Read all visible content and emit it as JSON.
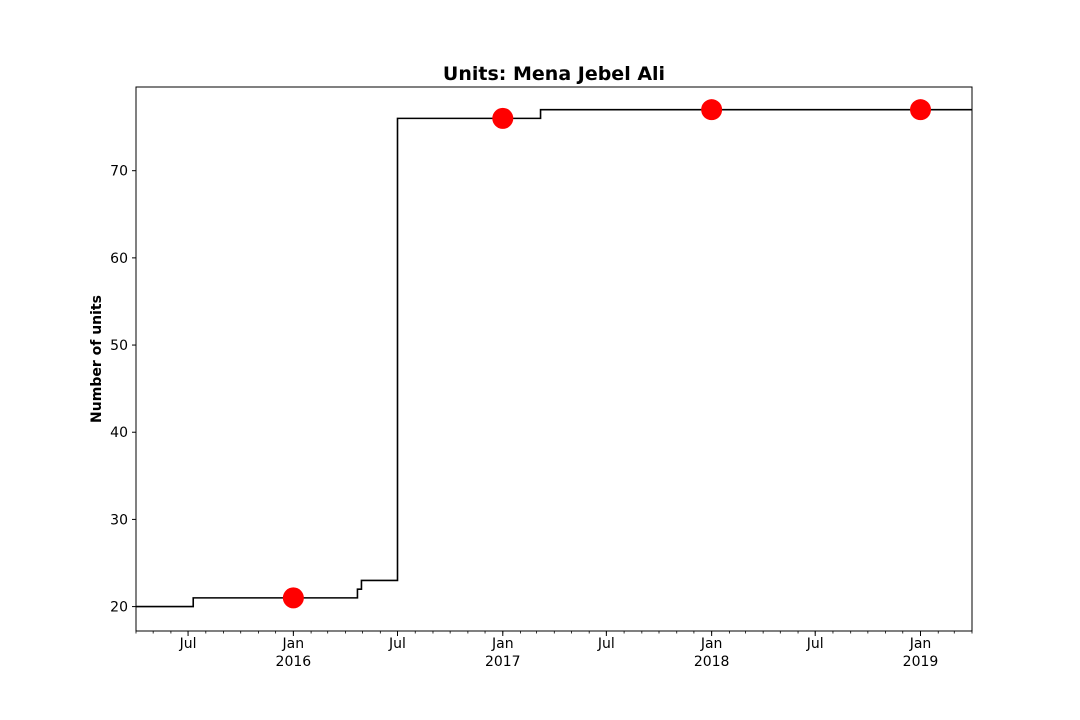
{
  "chart_data": {
    "type": "line",
    "title": "Units: Mena Jebel Ali",
    "xlabel": "",
    "ylabel": "Number of units",
    "x_range": [
      "2015-04-01",
      "2019-04-01"
    ],
    "ylim": [
      17.2,
      79.6
    ],
    "grid": false,
    "y_ticks": [
      20,
      30,
      40,
      50,
      60,
      70
    ],
    "x_ticks": [
      {
        "date": "2015-07-01",
        "label": "Jul",
        "year": ""
      },
      {
        "date": "2016-01-01",
        "label": "Jan",
        "year": "2016"
      },
      {
        "date": "2016-07-01",
        "label": "Jul",
        "year": ""
      },
      {
        "date": "2017-01-01",
        "label": "Jan",
        "year": "2017"
      },
      {
        "date": "2017-07-01",
        "label": "Jul",
        "year": ""
      },
      {
        "date": "2018-01-01",
        "label": "Jan",
        "year": "2018"
      },
      {
        "date": "2018-07-01",
        "label": "Jul",
        "year": ""
      },
      {
        "date": "2019-01-01",
        "label": "Jan",
        "year": "2019"
      }
    ],
    "series": [
      {
        "style": "step",
        "color": "#000000",
        "points": [
          {
            "x": "2015-04-01",
            "y": 20
          },
          {
            "x": "2015-07-10",
            "y": 21
          },
          {
            "x": "2016-04-22",
            "y": 22
          },
          {
            "x": "2016-04-29",
            "y": 23
          },
          {
            "x": "2016-07-01",
            "y": 76
          },
          {
            "x": "2017-03-08",
            "y": 77
          },
          {
            "x": "2019-04-01",
            "y": 77
          }
        ]
      },
      {
        "style": "markers",
        "color": "#ff0000",
        "points": [
          {
            "x": "2016-01-01",
            "y": 21
          },
          {
            "x": "2017-01-01",
            "y": 76
          },
          {
            "x": "2018-01-01",
            "y": 77
          },
          {
            "x": "2019-01-01",
            "y": 77
          }
        ]
      }
    ]
  }
}
